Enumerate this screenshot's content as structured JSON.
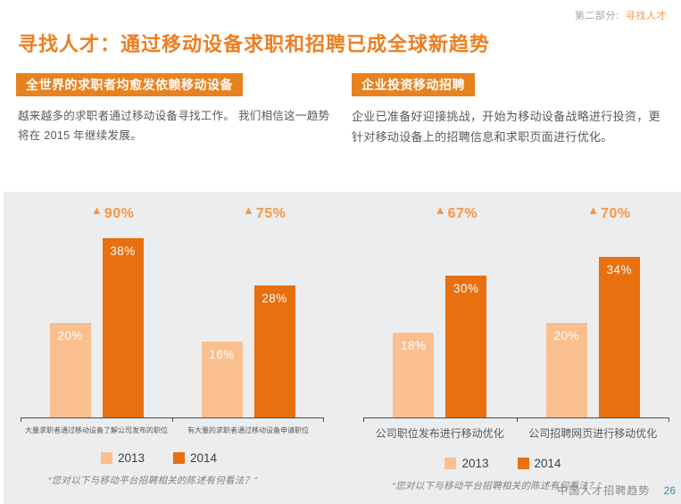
{
  "header": {
    "section_prefix": "第二部分:",
    "section_name": "寻找人才",
    "title": "寻找人才：通过移动设备求职和招聘已成全球新趋势"
  },
  "intro": {
    "left": {
      "heading": "全世界的求职者均愈发依赖移动设备",
      "body": "越来越多的求职者通过移动设备寻找工作。 我们相信这一趋势将在 2015 年继续发展。"
    },
    "right": {
      "heading": "企业投资移动招聘",
      "body": "企业已准备好迎接挑战，开始为移动设备战略进行投资，更针对移动设备上的招聘信息和求职页面进行优化。"
    }
  },
  "chart_data": [
    {
      "type": "bar",
      "title": "",
      "categories": [
        "大量求职者通过移动设备了解公司发布的职位",
        "有大量的求职者通过移动设备申请职位"
      ],
      "series": [
        {
          "name": "2013",
          "color": "#fabf8f",
          "values": [
            20,
            16
          ]
        },
        {
          "name": "2014",
          "color": "#e8700e",
          "values": [
            38,
            28
          ]
        }
      ],
      "growth_labels": [
        "90%",
        "75%"
      ],
      "unit": "%",
      "ylim": [
        0,
        45
      ],
      "grid": false,
      "legend_position": "bottom",
      "footnote": "“您对以下与移动平台招聘相关的陈述有何看法？”"
    },
    {
      "type": "bar",
      "title": "",
      "categories": [
        "公司职位发布进行移动优化",
        "公司招聘网页进行移动优化"
      ],
      "series": [
        {
          "name": "2013",
          "color": "#fabf8f",
          "values": [
            18,
            20
          ]
        },
        {
          "name": "2014",
          "color": "#e8700e",
          "values": [
            30,
            34
          ]
        }
      ],
      "growth_labels": [
        "67%",
        "70%"
      ],
      "unit": "%",
      "ylim": [
        0,
        45
      ],
      "grid": false,
      "legend_position": "bottom",
      "footnote": "“您对以下与移动平台招聘相关的陈述有何看法？”"
    }
  ],
  "footer": {
    "text": "中国人才招聘趋势",
    "page": "26"
  },
  "colors": {
    "accent_orange": "#e8821e",
    "title_orange": "#ee7e20",
    "growth_orange": "#f79646",
    "bar_2013": "#fabf8f",
    "bar_2014": "#e8700e",
    "panel_bg": "#ecedee",
    "body_text": "#595959",
    "page_number_blue": "#3a8ba6"
  }
}
